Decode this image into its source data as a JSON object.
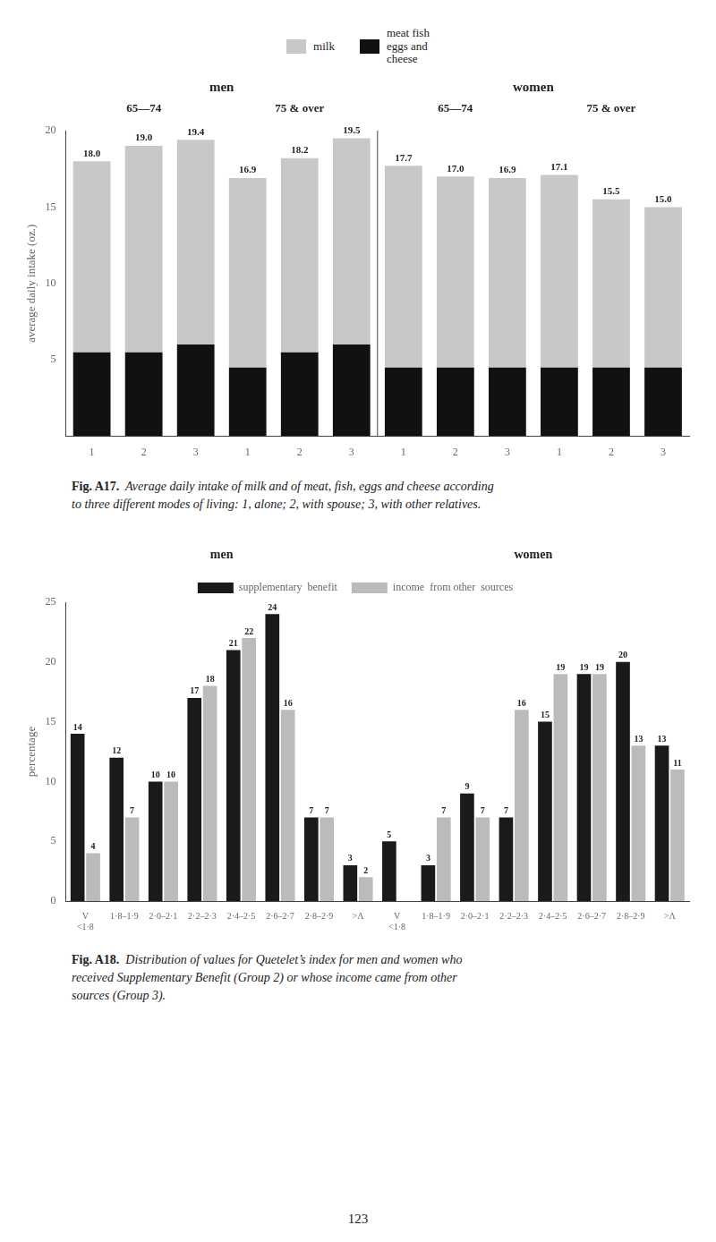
{
  "chart_data": [
    {
      "type": "bar",
      "stacked": true,
      "sections": [
        "men",
        "women"
      ],
      "groups": [
        "65—74",
        "75 & over",
        "65—74",
        "75 & over"
      ],
      "categories": [
        "1",
        "2",
        "3",
        "1",
        "2",
        "3",
        "1",
        "2",
        "3",
        "1",
        "2",
        "3"
      ],
      "series": [
        {
          "name": "meat fish\neggs and\ncheese",
          "color": "#111111",
          "values": [
            5.5,
            5.5,
            6.0,
            4.5,
            5.5,
            6.0,
            4.5,
            4.5,
            4.5,
            4.5,
            4.5,
            4.5
          ]
        },
        {
          "name": "milk",
          "color": "#c8c8c8",
          "values": [
            12.5,
            13.5,
            13.4,
            12.4,
            12.7,
            13.5,
            13.2,
            12.5,
            12.4,
            12.6,
            11.0,
            10.5
          ]
        }
      ],
      "totals": [
        18.0,
        19.0,
        19.4,
        16.9,
        18.2,
        19.5,
        17.7,
        17.0,
        16.9,
        17.1,
        15.5,
        15.0
      ],
      "total_labels": [
        "18.0",
        "19.0",
        "19.4",
        "16.9",
        "18.2",
        "19.5",
        "17.7",
        "17.0",
        "16.9",
        "17.1",
        "15.5",
        "15.0"
      ],
      "ylabel": "average daily intake (oz.)",
      "ylim": [
        0,
        20
      ],
      "yticks": [
        5,
        10,
        15,
        20
      ],
      "grid": false,
      "legend": "top",
      "caption_label": "Fig. A17.",
      "caption": "  Average daily intake of milk and of meat, fish, eggs and cheese according\nto three different modes of living: 1, alone; 2, with spouse; 3, with other relatives."
    },
    {
      "type": "bar",
      "sections": [
        "men",
        "women"
      ],
      "categories": [
        "V\n<1·8",
        "1·8–1·9",
        "2·0–2·1",
        "2·2–2·3",
        "2·4–2·5",
        "2·6–2·7",
        "2·8–2·9",
        ">Λ",
        "V\n<1·8",
        "1·8–1·9",
        "2·0–2·1",
        "2·2–2·3",
        "2·4–2·5",
        "2·6–2·7",
        "2·8–2·9",
        ">Λ"
      ],
      "series": [
        {
          "name": "supplementary  benefit",
          "color": "#1a1a1a",
          "values": [
            14,
            12,
            10,
            17,
            21,
            24,
            7,
            3,
            5,
            3,
            9,
            7,
            15,
            19,
            20,
            13
          ],
          "value_labels": [
            "14",
            "12",
            "10",
            "17",
            "21",
            "24",
            "7",
            "3",
            "5",
            "3",
            "9",
            "7",
            "15",
            "19",
            "20",
            "13"
          ]
        },
        {
          "name": "income  from other  sources",
          "color": "#bbbbbb",
          "values": [
            4,
            7,
            10,
            18,
            22,
            16,
            7,
            2,
            0,
            7,
            7,
            16,
            19,
            19,
            13,
            11
          ],
          "value_labels": [
            "4",
            "7",
            "10",
            "18",
            "22",
            "16",
            "7",
            "2",
            null,
            "7",
            "7",
            "16",
            "19",
            "19",
            "13",
            "11"
          ]
        }
      ],
      "ylabel": "percentage",
      "ylim": [
        0,
        25
      ],
      "yticks": [
        0,
        5,
        10,
        15,
        20,
        25
      ],
      "grid": false,
      "legend": "top",
      "caption_label": "Fig. A18.",
      "caption": "  Distribution of values for Quetelet’s index for men and women who\nreceived Supplementary Benefit (Group 2) or whose income came from other\nsources (Group 3)."
    }
  ],
  "page_number": "123"
}
